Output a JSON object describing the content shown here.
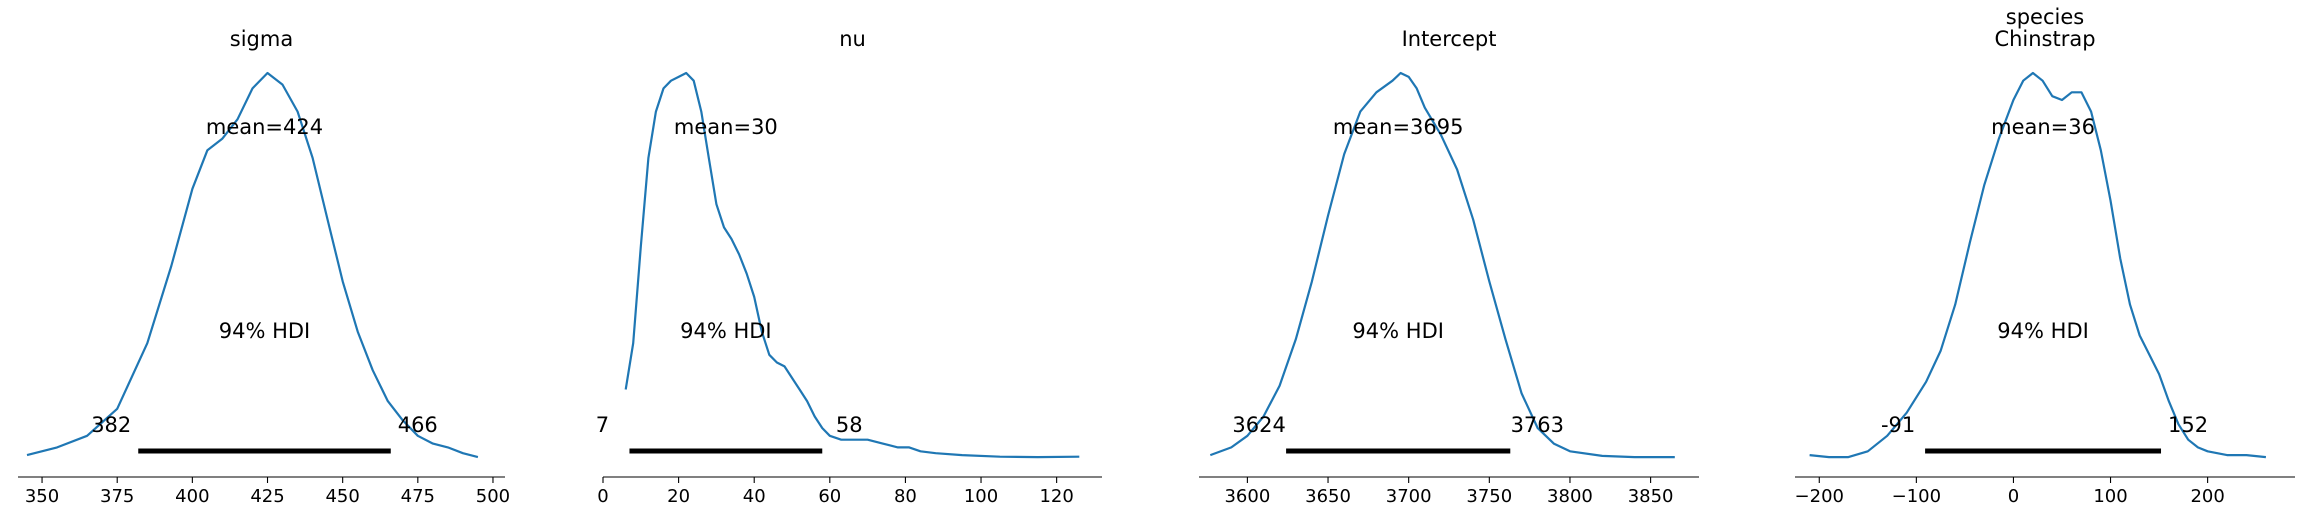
{
  "chart_data": [
    {
      "type": "line",
      "title": "sigma",
      "mean_label": "mean=424",
      "hdi_label": "94% HDI",
      "hdi": [
        382,
        466
      ],
      "hdi_low_label": "382",
      "hdi_high_label": "466",
      "xlim": [
        342,
        504
      ],
      "xticks": [
        350,
        375,
        400,
        425,
        450,
        475,
        500
      ],
      "xticklabels": [
        "350",
        "375",
        "400",
        "425",
        "450",
        "475",
        "500"
      ],
      "density": [
        [
          345,
          0.01
        ],
        [
          355,
          0.03
        ],
        [
          365,
          0.06
        ],
        [
          375,
          0.13
        ],
        [
          385,
          0.3
        ],
        [
          393,
          0.5
        ],
        [
          400,
          0.7
        ],
        [
          405,
          0.8
        ],
        [
          410,
          0.83
        ],
        [
          415,
          0.88
        ],
        [
          420,
          0.96
        ],
        [
          425,
          1.0
        ],
        [
          430,
          0.97
        ],
        [
          435,
          0.9
        ],
        [
          440,
          0.78
        ],
        [
          445,
          0.62
        ],
        [
          450,
          0.46
        ],
        [
          455,
          0.33
        ],
        [
          460,
          0.23
        ],
        [
          465,
          0.15
        ],
        [
          470,
          0.1
        ],
        [
          475,
          0.06
        ],
        [
          480,
          0.04
        ],
        [
          485,
          0.03
        ],
        [
          490,
          0.015
        ],
        [
          495,
          0.005
        ]
      ]
    },
    {
      "type": "line",
      "title": "nu",
      "mean_label": "mean=30",
      "hdi_label": "94% HDI",
      "hdi": [
        7,
        58
      ],
      "hdi_low_label": "7",
      "hdi_high_label": "58",
      "xlim": [
        0,
        132
      ],
      "xticks": [
        0,
        20,
        40,
        60,
        80,
        100,
        120
      ],
      "xticklabels": [
        "0",
        "20",
        "40",
        "60",
        "80",
        "100",
        "120"
      ],
      "density": [
        [
          6,
          0.18
        ],
        [
          8,
          0.3
        ],
        [
          10,
          0.55
        ],
        [
          12,
          0.78
        ],
        [
          14,
          0.9
        ],
        [
          16,
          0.96
        ],
        [
          18,
          0.98
        ],
        [
          20,
          0.99
        ],
        [
          22,
          1.0
        ],
        [
          24,
          0.98
        ],
        [
          26,
          0.9
        ],
        [
          28,
          0.78
        ],
        [
          30,
          0.66
        ],
        [
          32,
          0.6
        ],
        [
          34,
          0.57
        ],
        [
          36,
          0.53
        ],
        [
          38,
          0.48
        ],
        [
          40,
          0.42
        ],
        [
          42,
          0.33
        ],
        [
          44,
          0.27
        ],
        [
          46,
          0.25
        ],
        [
          48,
          0.24
        ],
        [
          50,
          0.21
        ],
        [
          52,
          0.18
        ],
        [
          54,
          0.15
        ],
        [
          56,
          0.11
        ],
        [
          58,
          0.08
        ],
        [
          60,
          0.06
        ],
        [
          63,
          0.05
        ],
        [
          66,
          0.05
        ],
        [
          70,
          0.05
        ],
        [
          74,
          0.04
        ],
        [
          78,
          0.03
        ],
        [
          81,
          0.03
        ],
        [
          84,
          0.02
        ],
        [
          88,
          0.015
        ],
        [
          95,
          0.01
        ],
        [
          105,
          0.006
        ],
        [
          115,
          0.005
        ],
        [
          126,
          0.006
        ]
      ]
    },
    {
      "type": "line",
      "title": "Intercept",
      "mean_label": "mean=3695",
      "hdi_label": "94% HDI",
      "hdi": [
        3624,
        3763
      ],
      "hdi_low_label": "3624",
      "hdi_high_label": "3763",
      "xlim": [
        3570,
        3880
      ],
      "xticks": [
        3600,
        3650,
        3700,
        3750,
        3800,
        3850
      ],
      "xticklabels": [
        "3600",
        "3650",
        "3700",
        "3750",
        "3800",
        "3850"
      ],
      "density": [
        [
          3577,
          0.01
        ],
        [
          3590,
          0.03
        ],
        [
          3600,
          0.06
        ],
        [
          3610,
          0.11
        ],
        [
          3620,
          0.19
        ],
        [
          3630,
          0.31
        ],
        [
          3640,
          0.46
        ],
        [
          3650,
          0.63
        ],
        [
          3660,
          0.79
        ],
        [
          3670,
          0.9
        ],
        [
          3680,
          0.95
        ],
        [
          3690,
          0.98
        ],
        [
          3695,
          1.0
        ],
        [
          3700,
          0.99
        ],
        [
          3705,
          0.96
        ],
        [
          3710,
          0.91
        ],
        [
          3720,
          0.84
        ],
        [
          3730,
          0.75
        ],
        [
          3740,
          0.62
        ],
        [
          3750,
          0.46
        ],
        [
          3760,
          0.31
        ],
        [
          3770,
          0.17
        ],
        [
          3780,
          0.08
        ],
        [
          3790,
          0.04
        ],
        [
          3800,
          0.02
        ],
        [
          3820,
          0.008
        ],
        [
          3840,
          0.005
        ],
        [
          3865,
          0.005
        ]
      ]
    },
    {
      "type": "line",
      "title": "species\nChinstrap",
      "mean_label": "mean=36",
      "hdi_label": "94% HDI",
      "hdi": [
        -91,
        152
      ],
      "hdi_low_label": "-91",
      "hdi_high_label": "152",
      "xlim": [
        -225,
        290
      ],
      "xticks": [
        -200,
        -100,
        0,
        100,
        200
      ],
      "xticklabels": [
        "−200",
        "−100",
        "0",
        "100",
        "200"
      ],
      "density": [
        [
          -210,
          0.01
        ],
        [
          -190,
          0.005
        ],
        [
          -170,
          0.005
        ],
        [
          -150,
          0.02
        ],
        [
          -130,
          0.06
        ],
        [
          -110,
          0.12
        ],
        [
          -90,
          0.2
        ],
        [
          -75,
          0.28
        ],
        [
          -60,
          0.4
        ],
        [
          -45,
          0.56
        ],
        [
          -30,
          0.71
        ],
        [
          -15,
          0.83
        ],
        [
          0,
          0.93
        ],
        [
          10,
          0.98
        ],
        [
          20,
          1.0
        ],
        [
          30,
          0.98
        ],
        [
          40,
          0.94
        ],
        [
          50,
          0.93
        ],
        [
          60,
          0.95
        ],
        [
          70,
          0.95
        ],
        [
          80,
          0.9
        ],
        [
          90,
          0.8
        ],
        [
          100,
          0.67
        ],
        [
          110,
          0.52
        ],
        [
          120,
          0.4
        ],
        [
          130,
          0.32
        ],
        [
          140,
          0.27
        ],
        [
          150,
          0.22
        ],
        [
          160,
          0.15
        ],
        [
          170,
          0.09
        ],
        [
          180,
          0.05
        ],
        [
          190,
          0.03
        ],
        [
          200,
          0.02
        ],
        [
          220,
          0.01
        ],
        [
          240,
          0.01
        ],
        [
          260,
          0.005
        ]
      ]
    }
  ],
  "colors": {
    "curve": "#1f77b4",
    "hdi_bar": "#000000",
    "axis": "#000000"
  }
}
